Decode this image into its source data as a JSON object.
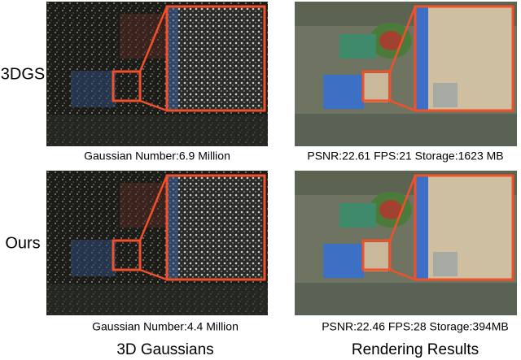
{
  "rows": [
    {
      "label": "3DGS",
      "gaussians_caption": "Gaussian Number:6.9 Million",
      "rendering_caption": "PSNR:22.61 FPS:21 Storage:1623 MB"
    },
    {
      "label": "Ours",
      "gaussians_caption": "Gaussian Number:4.4 Million",
      "rendering_caption": "PSNR:22.46 FPS:28 Storage:394MB"
    }
  ],
  "columns": [
    "3D Gaussians",
    "Rendering Results"
  ]
}
